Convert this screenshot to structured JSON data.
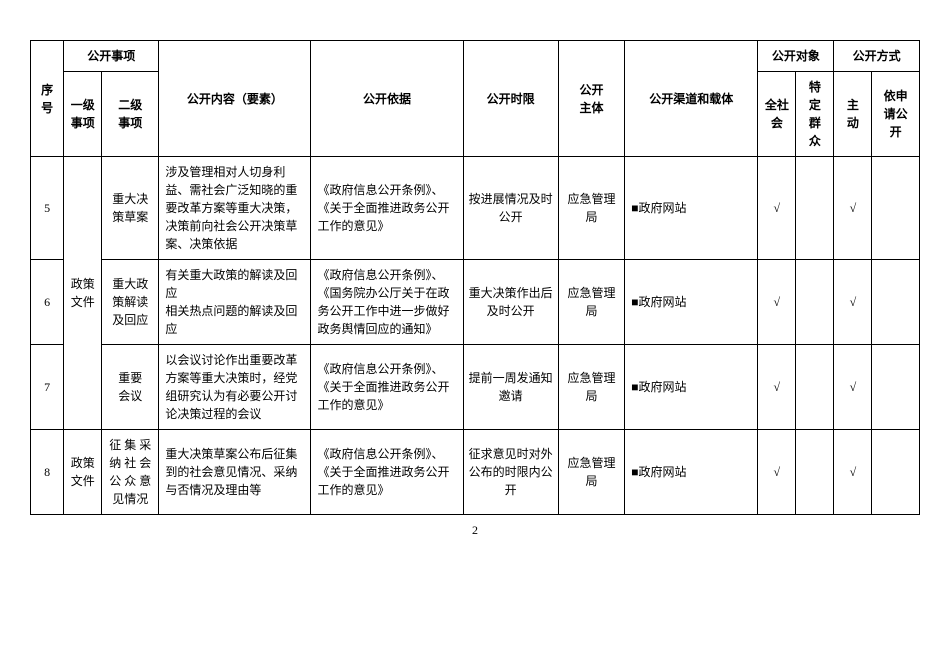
{
  "header": {
    "seq": "序\n号",
    "item": "公开事项",
    "l1": "一级\n事项",
    "l2": "二级\n事项",
    "content": "公开内容（要素）",
    "basis": "公开依据",
    "time": "公开时限",
    "subject": "公开\n主体",
    "channel": "公开渠道和载体",
    "target": "公开对象",
    "all": "全社\n会",
    "specific": "特\n定\n群\n众",
    "method": "公开方式",
    "active": "主\n动",
    "apply": "依申\n请公\n开"
  },
  "rows": [
    {
      "seq": "5",
      "l1": "政策\n文件",
      "l2": "重大决\n策草案",
      "content": "涉及管理相对人切身利益、需社会广泛知晓的重要改革方案等重大决策，决策前向社会公开决策草案、决策依据",
      "basis": "《政府信息公开条例》、《关于全面推进政务公开工作的意见》",
      "time": "按进展情况及时公开",
      "subject": "应急管理局",
      "channel": "■政府网站",
      "all": "√",
      "specific": "",
      "active": "√",
      "apply": ""
    },
    {
      "seq": "6",
      "l2": "重大政\n策解读\n及回应",
      "content": "有关重大政策的解读及回应\n相关热点问题的解读及回应",
      "basis": "《政府信息公开条例》、《国务院办公厅关于在政务公开工作中进一步做好政务舆情回应的通知》",
      "time": "重大决策作出后及时公开",
      "subject": "应急管理局",
      "channel": "■政府网站",
      "all": "√",
      "specific": "",
      "active": "√",
      "apply": ""
    },
    {
      "seq": "7",
      "l2": "重要\n会议",
      "content": "以会议讨论作出重要改革方案等重大决策时，经党组研究认为有必要公开讨论决策过程的会议",
      "basis": "《政府信息公开条例》、《关于全面推进政务公开工作的意见》",
      "time": "提前一周发通知邀请",
      "subject": "应急管理局",
      "channel": "■政府网站",
      "all": "√",
      "specific": "",
      "active": "√",
      "apply": ""
    },
    {
      "seq": "8",
      "l1": "政策\n文件",
      "l2": "征 集 采\n纳 社 会\n公 众 意\n见情况",
      "content": "重大决策草案公布后征集到的社会意见情况、采纳与否情况及理由等",
      "basis": "《政府信息公开条例》、《关于全面推进政务公开工作的意见》",
      "time": "征求意见时对外公布的时限内公开",
      "subject": "应急管理局",
      "channel": "■政府网站",
      "all": "√",
      "specific": "",
      "active": "√",
      "apply": ""
    }
  ],
  "page": "2"
}
